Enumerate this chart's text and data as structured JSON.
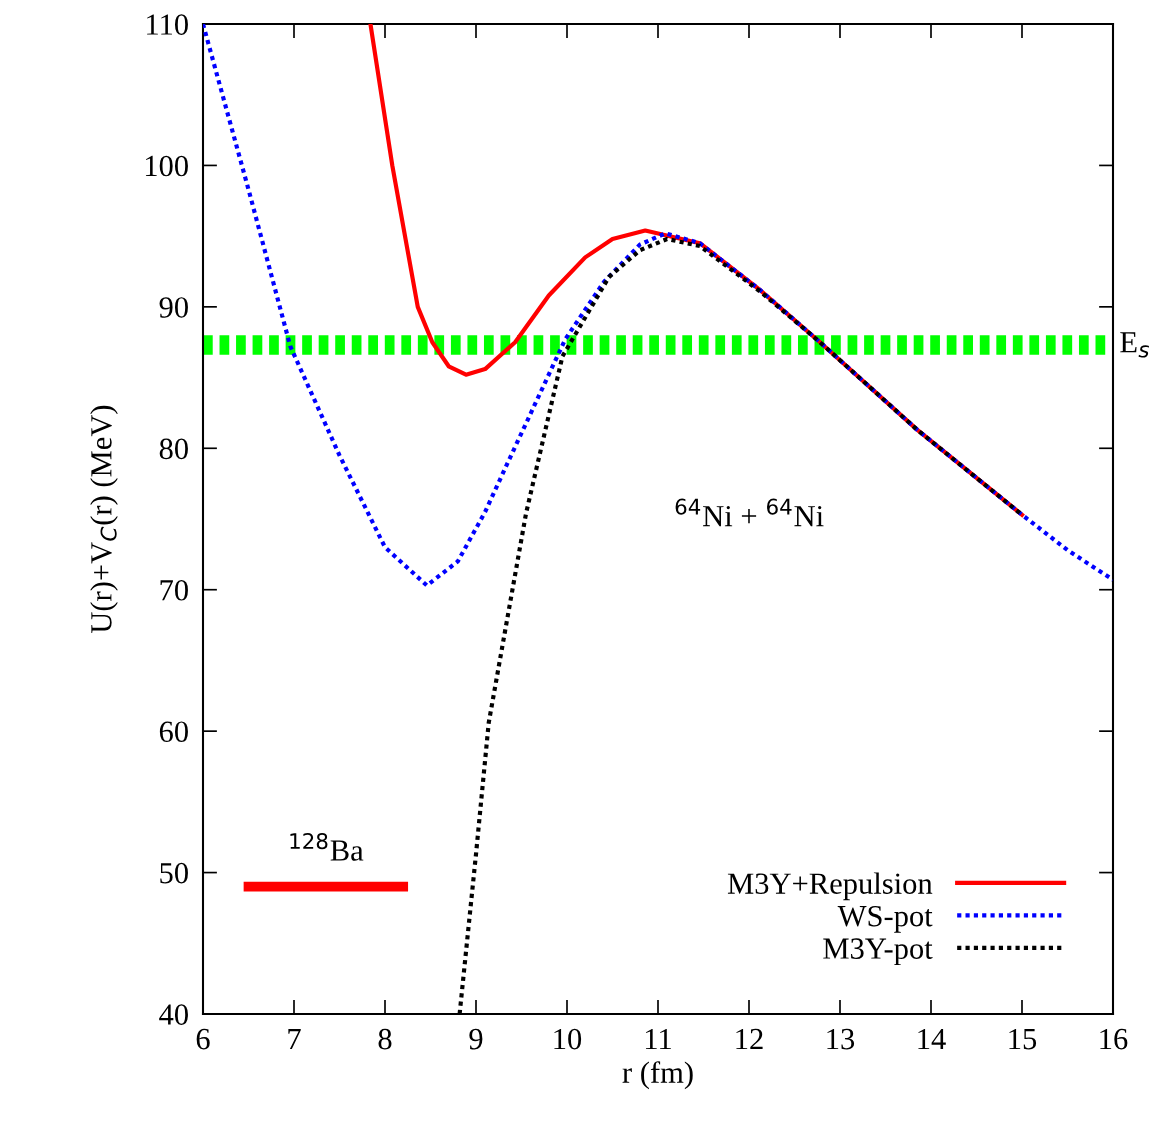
{
  "chart_data": {
    "type": "line",
    "xlabel": "r (fm)",
    "ylabel": "U(r)+V$_{C}$(r) (MeV)",
    "xlim": [
      6,
      16
    ],
    "ylim": [
      40,
      110
    ],
    "xticks": [
      6,
      7,
      8,
      9,
      10,
      11,
      12,
      13,
      14,
      15,
      16
    ],
    "yticks": [
      40,
      50,
      60,
      70,
      80,
      90,
      100,
      110
    ],
    "grid": false,
    "legend": "bottom right",
    "series": [
      {
        "name": "M3Y+Repulsion",
        "color": "#ff0000",
        "line_style": "solid",
        "x": [
          7.84,
          8.08,
          8.36,
          8.52,
          8.7,
          8.89,
          9.1,
          9.43,
          9.8,
          10.2,
          10.5,
          10.86,
          11.46,
          12.12,
          12.78,
          13.85,
          15.0
        ],
        "values": [
          110,
          100,
          90,
          87.5,
          85.8,
          85.2,
          85.6,
          87.5,
          90.8,
          93.5,
          94.8,
          95.4,
          94.5,
          91.2,
          87.5,
          81.3,
          75.3
        ]
      },
      {
        "name": "WS-pot",
        "color": "#0000ff",
        "line_style": "dotted",
        "x": [
          6.0,
          6.5,
          6.96,
          7.5,
          8.0,
          8.46,
          8.8,
          9.1,
          9.35,
          9.98,
          10.41,
          10.8,
          11.08,
          11.46,
          12.12,
          12.78,
          13.85,
          15.0,
          15.5,
          16.0
        ],
        "values": [
          110,
          98.3,
          87.2,
          79.5,
          73.0,
          70.3,
          72.0,
          75.5,
          79.0,
          87.7,
          91.8,
          94.4,
          95.2,
          94.5,
          91.2,
          87.5,
          81.3,
          75.3,
          72.8,
          70.7
        ]
      },
      {
        "name": "M3Y-pot",
        "color": "#000000",
        "line_style": "dotted",
        "x": [
          8.82,
          9.0,
          9.14,
          9.55,
          9.95,
          10.46,
          10.8,
          11.1,
          11.46,
          12.12,
          12.78,
          13.85,
          15.0
        ],
        "values": [
          40,
          51.3,
          60.6,
          75.4,
          86.5,
          92.1,
          94.0,
          94.8,
          94.3,
          91.1,
          87.5,
          81.3,
          75.3
        ]
      },
      {
        "color": "#ff0000",
        "line_style": "solid",
        "x": [
          6.5,
          8.2
        ],
        "values": [
          49,
          49
        ]
      }
    ],
    "ref_lines": [
      {
        "axis": "y",
        "value": 87.3,
        "label": "E$_{s}$",
        "color": "#00ff00",
        "line_style": "dashed"
      }
    ],
    "annotations": [
      {
        "text": "$^{128}$Ba",
        "x": 7.35,
        "y": 49
      },
      "$^{64}$Ni + $^{64}$Ni"
    ]
  }
}
